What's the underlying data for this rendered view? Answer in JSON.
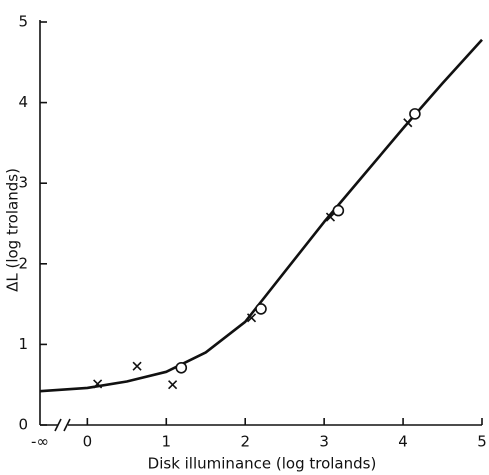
{
  "chart_data": {
    "type": "scatter",
    "xlabel": "Disk illuminance (log trolands)",
    "ylabel": "ΔL (log trolands)",
    "xlim": [
      -0.6,
      5
    ],
    "ylim": [
      0,
      5
    ],
    "xticks": [
      {
        "value": -0.6,
        "label": "-∞"
      },
      0,
      1,
      2,
      3,
      4,
      5
    ],
    "yticks": [
      0,
      1,
      2,
      3,
      4,
      5
    ],
    "color": "#111111",
    "series": [
      {
        "marker": "x",
        "x": [
          0.13,
          0.63,
          1.08,
          2.08,
          3.08,
          4.06
        ],
        "values": [
          0.51,
          0.73,
          0.5,
          1.33,
          2.58,
          3.75
        ]
      },
      {
        "marker": "o",
        "x": [
          1.19,
          2.2,
          3.18,
          4.15
        ],
        "values": [
          0.71,
          1.44,
          2.66,
          3.86
        ]
      }
    ],
    "curve": {
      "x": [
        -0.6,
        0,
        0.5,
        1,
        1.5,
        2,
        2.5,
        3,
        3.5,
        4,
        4.5,
        5
      ],
      "values": [
        0.42,
        0.46,
        0.54,
        0.66,
        0.9,
        1.28,
        1.9,
        2.52,
        3.1,
        3.68,
        4.24,
        4.78
      ]
    }
  }
}
